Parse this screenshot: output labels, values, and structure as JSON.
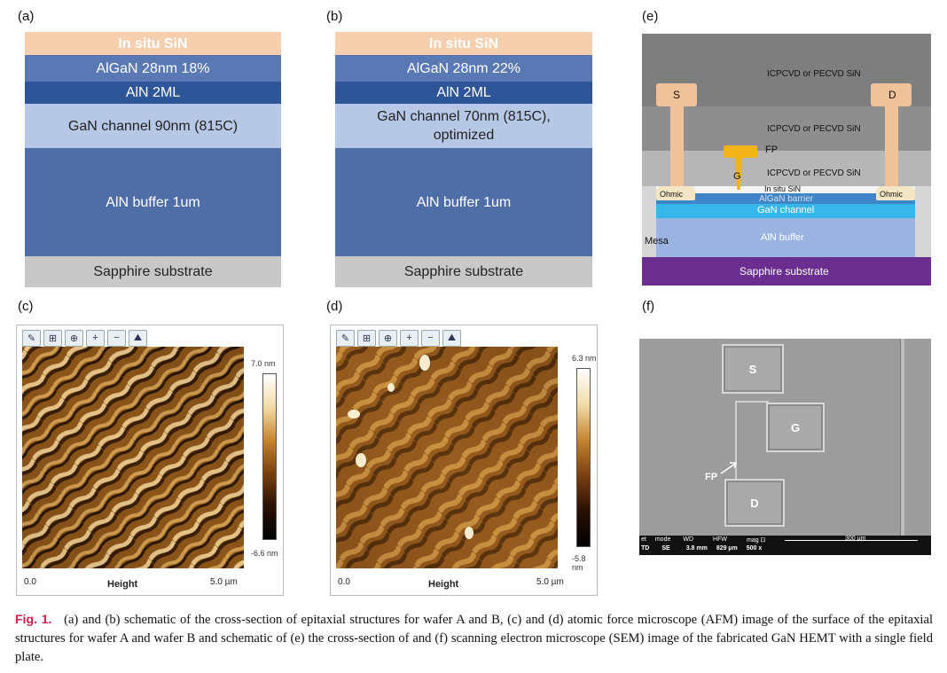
{
  "panels": {
    "a": {
      "label": "(a)",
      "layers": [
        "In situ SiN",
        "AlGaN 28nm 18%",
        "AlN 2ML",
        "GaN channel 90nm (815C)",
        "AlN buffer 1um",
        "Sapphire substrate"
      ]
    },
    "b": {
      "label": "(b)",
      "layers": [
        "In situ SiN",
        "AlGaN 28nm 22%",
        "AlN 2ML",
        "GaN channel 70nm (815C),",
        "optimized",
        "AlN buffer 1um",
        "Sapphire substrate"
      ]
    },
    "c": {
      "label": "(c)",
      "cbar_max": "7.0 nm",
      "cbar_min": "-6.6 nm",
      "axis_start": "0.0",
      "axis_title": "Height",
      "axis_end": "5.0 µm"
    },
    "d": {
      "label": "(d)",
      "cbar_max": "6.3 nm",
      "cbar_min": "-5.8 nm",
      "axis_start": "0.0",
      "axis_title": "Height",
      "axis_end": "5.0 µm"
    },
    "e": {
      "label": "(e)",
      "sin_top": "ICPCVD or PECVD SiN",
      "sin_mid": "ICPCVD or PECVD SiN",
      "sin_low": "ICPCVD or PECVD SiN",
      "source": "S",
      "drain": "D",
      "fp": "FP",
      "gate": "G",
      "ohmic_left": "Ohmic",
      "ohmic_right": "Ohmic",
      "insitu": "In situ SiN",
      "barrier": "AlGaN barrier",
      "channel": "GaN channel",
      "buffer": "AlN buffer",
      "mesa": "Mesa",
      "substrate": "Sapphire substrate"
    },
    "f": {
      "label": "(f)",
      "pad_s": "S",
      "pad_g": "G",
      "pad_d": "D",
      "fp": "FP",
      "info_row1": [
        "et",
        "mode",
        "WD",
        "HFW",
        "mag ⊡"
      ],
      "info_row2": [
        "TD",
        "SE",
        "3.8 mm",
        "829 µm",
        "500 x"
      ],
      "scale": "300 µm"
    }
  },
  "caption": {
    "fig": "Fig. 1.",
    "text": "(a) and (b) schematic of the cross-section of epitaxial structures for wafer A and B, (c) and (d) atomic force microscope (AFM) image of the surface of the epitaxial structures for wafer A and wafer B and schematic of (e) the cross-section of and (f) scanning electron microscope (SEM) image of the fabricated GaN HEMT with a single field plate."
  },
  "colors": {
    "sin_layer": "#f6cfae",
    "algan": "#5a79b4",
    "aln_2ml": "#2e5597",
    "gan_channel": "#b6c8e6",
    "aln_buffer": "#4f6ea8",
    "sapphire": "#c8c8c8",
    "caption_fig": "#d0204a"
  }
}
